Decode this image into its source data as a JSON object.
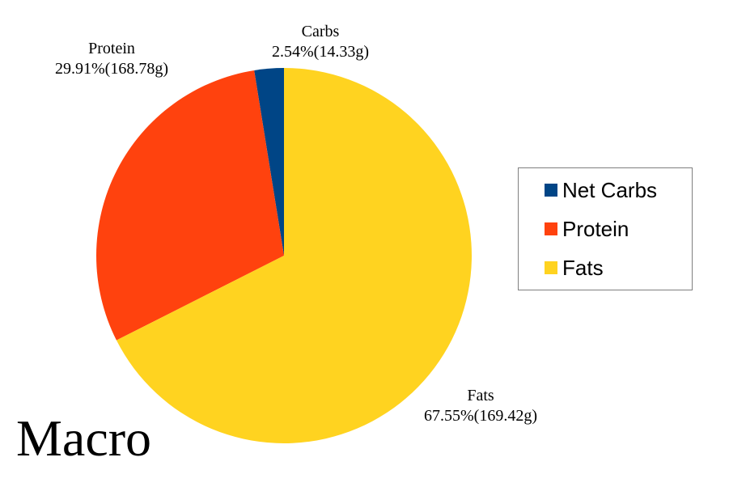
{
  "chart_data": {
    "type": "pie",
    "title": "Macro",
    "slices": [
      {
        "name": "Net Carbs",
        "label_name": "Carbs",
        "percent": 2.54,
        "grams": 14.33,
        "label_detail": "2.54%(14.33g)",
        "color": "#004586"
      },
      {
        "name": "Protein",
        "label_name": "Protein",
        "percent": 29.91,
        "grams": 168.78,
        "label_detail": "29.91%(168.78g)",
        "color": "#ff420e"
      },
      {
        "name": "Fats",
        "label_name": "Fats",
        "percent": 67.55,
        "grams": 169.42,
        "label_detail": "67.55%(169.42g)",
        "color": "#ffd320"
      }
    ],
    "legend": {
      "placement": "right",
      "entries": [
        "Net Carbs",
        "Protein",
        "Fats"
      ]
    },
    "start_angle": "12 o'clock",
    "direction": "counterclockwise"
  }
}
